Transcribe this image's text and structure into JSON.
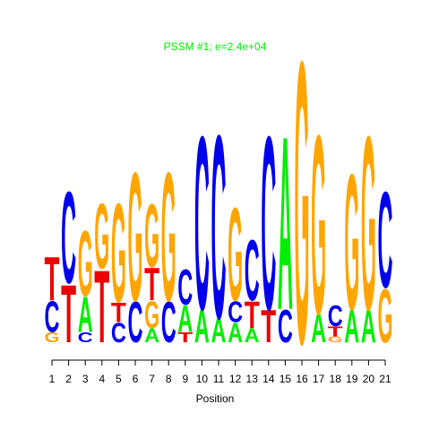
{
  "chart_data": {
    "type": "logo",
    "title": "PSSM #1; e=2.4e+04",
    "title_color": "#00ee00",
    "x_label": "Position",
    "colors": {
      "A": "#00ee00",
      "C": "#0000ee",
      "G": "#ffa500",
      "T": "#ee0000"
    },
    "categories": [
      1,
      2,
      3,
      4,
      5,
      6,
      7,
      8,
      9,
      10,
      11,
      12,
      13,
      14,
      15,
      16,
      17,
      18,
      19,
      20,
      21
    ],
    "stacks": [
      {
        "letters": [
          "G",
          "C",
          "T"
        ],
        "values": [
          0.07,
          0.22,
          0.31
        ]
      },
      {
        "letters": [
          "T",
          "C"
        ],
        "values": [
          0.41,
          0.65
        ]
      },
      {
        "letters": [
          "C",
          "A",
          "G"
        ],
        "values": [
          0.07,
          0.25,
          0.46
        ]
      },
      {
        "letters": [
          "T",
          "G"
        ],
        "values": [
          0.51,
          0.46
        ]
      },
      {
        "letters": [
          "C",
          "T",
          "G"
        ],
        "values": [
          0.14,
          0.14,
          0.7
        ]
      },
      {
        "letters": [
          "C",
          "G"
        ],
        "values": [
          0.29,
          0.91
        ]
      },
      {
        "letters": [
          "A",
          "G",
          "T",
          "G"
        ],
        "values": [
          0.1,
          0.19,
          0.23,
          0.45
        ]
      },
      {
        "letters": [
          "C",
          "G"
        ],
        "values": [
          0.29,
          0.91
        ]
      },
      {
        "letters": [
          "T",
          "A",
          "C"
        ],
        "values": [
          0.07,
          0.19,
          0.25
        ]
      },
      {
        "letters": [
          "A",
          "C"
        ],
        "values": [
          0.23,
          1.23
        ]
      },
      {
        "letters": [
          "A",
          "C"
        ],
        "values": [
          0.17,
          1.3
        ]
      },
      {
        "letters": [
          "A",
          "C",
          "G"
        ],
        "values": [
          0.14,
          0.15,
          0.66
        ]
      },
      {
        "letters": [
          "A",
          "T",
          "C"
        ],
        "values": [
          0.1,
          0.19,
          0.43
        ]
      },
      {
        "letters": [
          "T",
          "C"
        ],
        "values": [
          0.23,
          1.23
        ]
      },
      {
        "letters": [
          "C",
          "A"
        ],
        "values": [
          0.23,
          1.23
        ]
      },
      {
        "letters": [
          "G"
        ],
        "values": [
          2.0
        ]
      },
      {
        "letters": [
          "A",
          "G"
        ],
        "values": [
          0.2,
          1.27
        ]
      },
      {
        "letters": [
          "G",
          "T",
          "C"
        ],
        "values": [
          0.04,
          0.07,
          0.15
        ]
      },
      {
        "letters": [
          "A",
          "G"
        ],
        "values": [
          0.23,
          0.96
        ]
      },
      {
        "letters": [
          "A",
          "G"
        ],
        "values": [
          0.23,
          1.23
        ]
      },
      {
        "letters": [
          "G",
          "C"
        ],
        "values": [
          0.38,
          0.68
        ]
      }
    ]
  }
}
